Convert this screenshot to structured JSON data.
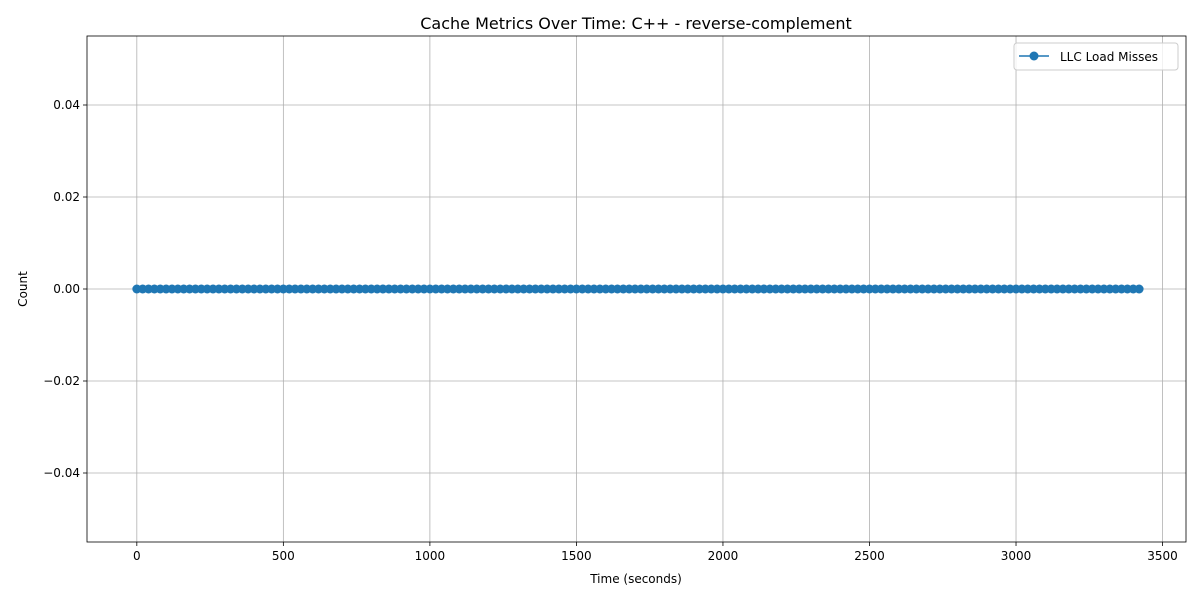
{
  "chart_data": {
    "type": "line",
    "title": "Cache Metrics Over Time: C++ - reverse-complement",
    "xlabel": "Time (seconds)",
    "ylabel": "Count",
    "xlim": [
      -170,
      3580
    ],
    "ylim": [
      -0.055,
      0.055
    ],
    "x_ticks": [
      0,
      500,
      1000,
      1500,
      2000,
      2500,
      3000,
      3500
    ],
    "x_tick_labels": [
      "0",
      "500",
      "1000",
      "1500",
      "2000",
      "2500",
      "3000",
      "3500"
    ],
    "y_ticks": [
      -0.04,
      -0.02,
      0.0,
      0.02,
      0.04
    ],
    "y_tick_labels": [
      "−0.04",
      "−0.02",
      "0.00",
      "0.02",
      "0.04"
    ],
    "grid": true,
    "legend_position": "top-right",
    "series": [
      {
        "name": "LLC Load Misses",
        "color": "#1f77b4",
        "marker": "circle",
        "x_start": 0,
        "x_step": 20,
        "x_end": 3420,
        "y_constant": 0
      }
    ]
  }
}
